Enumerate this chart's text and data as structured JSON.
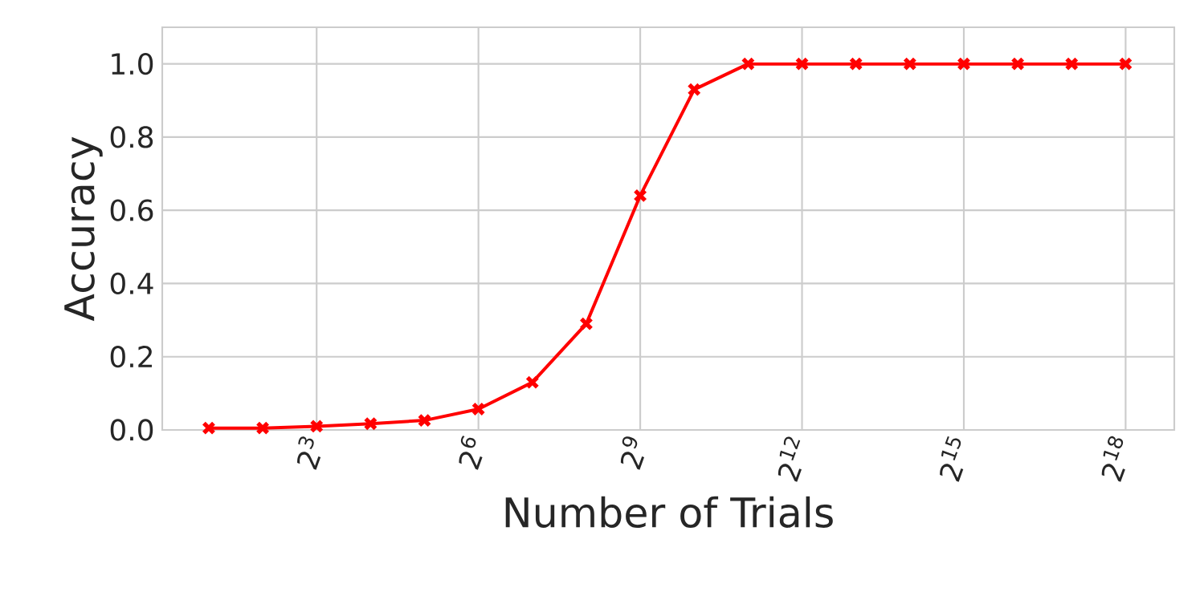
{
  "chart_data": {
    "type": "line",
    "xlabel": "Number of Trials",
    "ylabel": "Accuracy",
    "x": [
      2,
      4,
      8,
      16,
      32,
      64,
      128,
      256,
      512,
      1024,
      2048,
      4096,
      8192,
      16384,
      32768,
      65536,
      131072,
      262144
    ],
    "series": [
      {
        "color": "#ff0000",
        "values": [
          0.005,
          0.005,
          0.01,
          0.017,
          0.026,
          0.057,
          0.13,
          0.29,
          0.64,
          0.93,
          1.0,
          1.0,
          1.0,
          1.0,
          1.0,
          1.0,
          1.0,
          1.0
        ]
      }
    ],
    "log": "x",
    "xlim": [
      1.1,
      490000
    ],
    "ylim": [
      0,
      1.1
    ],
    "xticks": [
      {
        "value": 8,
        "label": "2$^{3}$"
      },
      {
        "value": 64,
        "label": "2$^{6}$"
      },
      {
        "value": 512,
        "label": "2$^{9}$"
      },
      {
        "value": 4096,
        "label": "2$^{12}$"
      },
      {
        "value": 32768,
        "label": "2$^{15}$"
      },
      {
        "value": 262144,
        "label": "2$^{18}$"
      }
    ],
    "yticks": [
      {
        "value": 0,
        "label": "0.0"
      },
      {
        "value": 0.2,
        "label": "0.2"
      },
      {
        "value": 0.4,
        "label": "0.4"
      },
      {
        "value": 0.6,
        "label": "0.6"
      },
      {
        "value": 0.8,
        "label": "0.8"
      },
      {
        "value": 1.0,
        "label": "1.0"
      }
    ],
    "grid": true,
    "marker": "cross",
    "line_style": "solid"
  }
}
